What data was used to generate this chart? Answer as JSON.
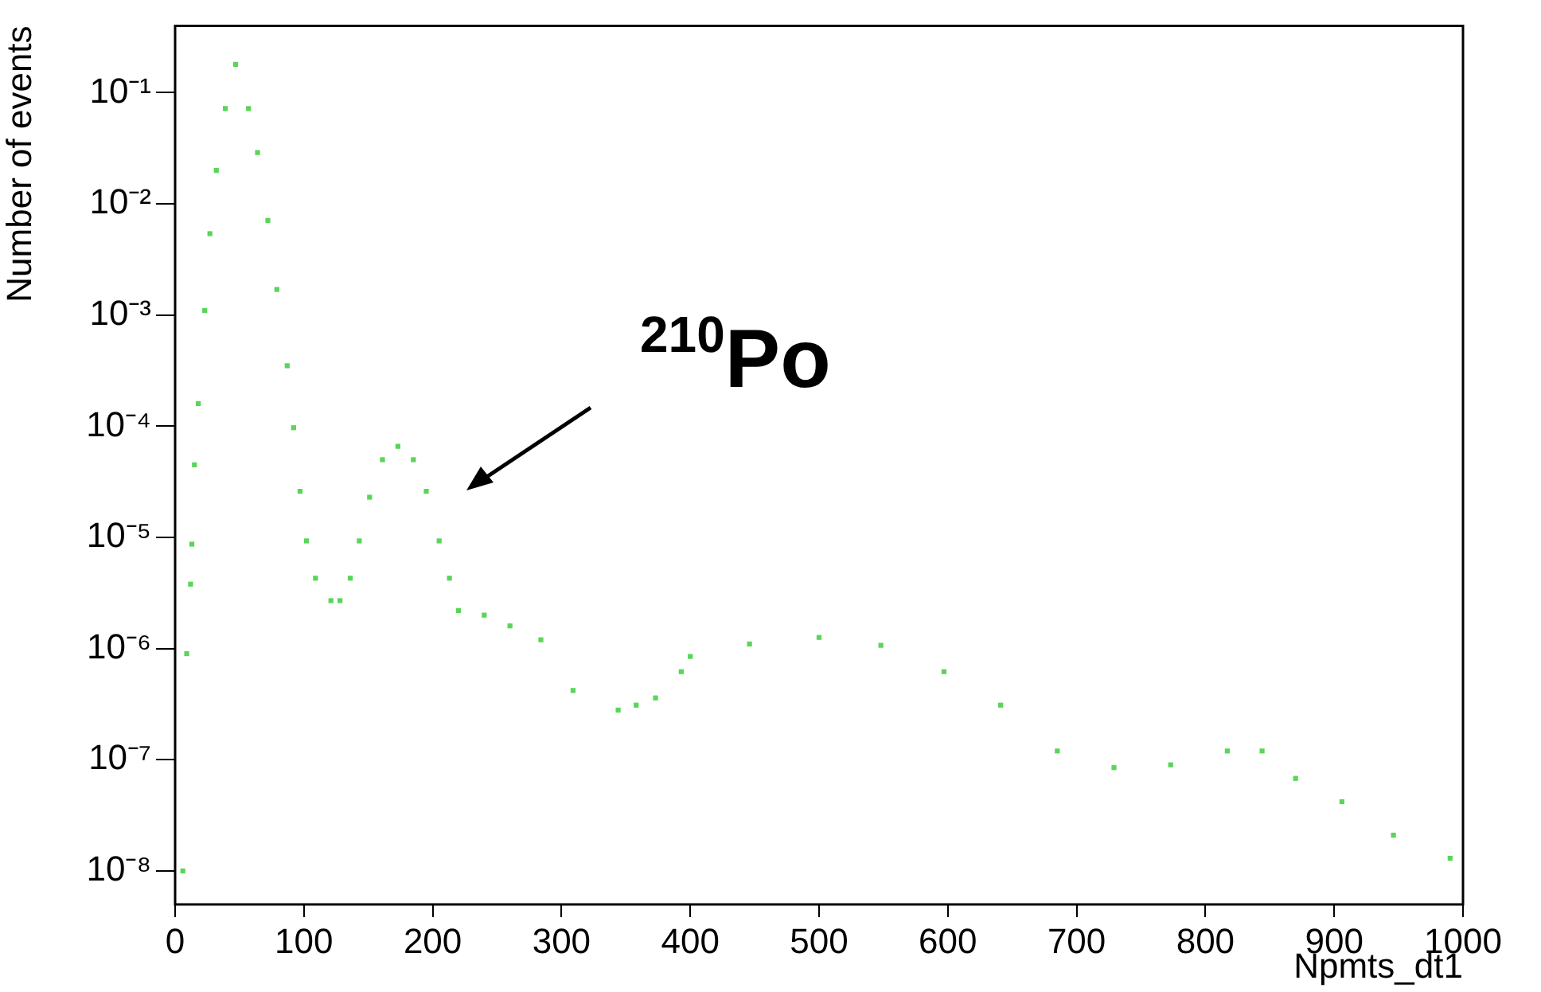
{
  "chart_data": {
    "type": "scatter",
    "xlabel": "Npmts_dt1",
    "ylabel": "Number of events",
    "log": "y",
    "marker": "square",
    "color": "#5ad55a",
    "x": [
      6,
      9,
      12,
      13,
      15,
      18,
      23,
      27,
      32,
      39,
      47,
      57,
      64,
      72,
      79,
      87,
      92,
      97,
      102,
      109,
      121,
      128,
      136,
      143,
      151,
      161,
      173,
      185,
      195,
      205,
      213,
      220,
      240,
      260,
      284,
      309,
      344,
      358,
      373,
      393,
      400,
      446,
      500,
      548,
      597,
      641,
      685,
      729,
      773,
      817,
      844,
      870,
      906,
      946,
      990
    ],
    "values": [
      1e-08,
      9e-07,
      3.8e-06,
      8.7e-06,
      4.5e-05,
      0.00016,
      0.0011,
      0.0054,
      0.02,
      0.072,
      0.18,
      0.072,
      0.029,
      0.0071,
      0.0017,
      0.00035,
      9.7e-05,
      2.6e-05,
      9.3e-06,
      4.3e-06,
      2.7e-06,
      2.7e-06,
      4.3e-06,
      9.3e-06,
      2.3e-05,
      5e-05,
      6.6e-05,
      5e-05,
      2.6e-05,
      9.3e-06,
      4.3e-06,
      2.2e-06,
      2e-06,
      1.6e-06,
      1.2e-06,
      4.2e-07,
      2.8e-07,
      3.1e-07,
      3.6e-07,
      6.2e-07,
      8.5e-07,
      1.1e-06,
      1.26e-06,
      1.07e-06,
      6.2e-07,
      3.1e-07,
      1.2e-07,
      8.5e-08,
      9e-08,
      1.2e-07,
      1.2e-07,
      6.8e-08,
      4.2e-08,
      2.1e-08,
      1.3e-08
    ],
    "xlim": [
      0,
      1000
    ],
    "xticks": [
      0,
      100,
      200,
      300,
      400,
      500,
      600,
      700,
      800,
      900,
      1000
    ],
    "ylim": [
      5e-09,
      0.4
    ],
    "yticks": [
      {
        "value": 1e-08,
        "label": "10⁻⁸"
      },
      {
        "value": 1e-07,
        "label": "10⁻⁷"
      },
      {
        "value": 1e-06,
        "label": "10⁻⁶"
      },
      {
        "value": 1e-05,
        "label": "10⁻⁵"
      },
      {
        "value": 0.0001,
        "label": "10⁻⁴"
      },
      {
        "value": 0.001,
        "label": "10⁻³"
      },
      {
        "value": 0.01,
        "label": "10⁻²"
      },
      {
        "value": 0.1,
        "label": "10⁻¹"
      }
    ],
    "annotations": [
      "$^{210}$Po"
    ]
  }
}
